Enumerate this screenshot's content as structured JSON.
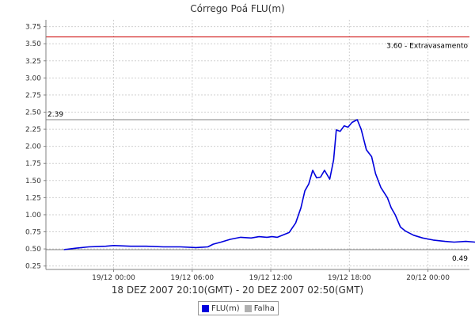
{
  "chart_data": {
    "type": "line",
    "title": "Córrego Poá FLU(m)",
    "xlabel": "18 DEZ 2007 20:10(GMT) - 20 DEZ 2007 02:50(GMT)",
    "ylabel": "",
    "x_unit": "hours since 19/12 00:00 (GMT)",
    "xlim": [
      -5.17,
      27.17
    ],
    "ylim": [
      0.2,
      3.85
    ],
    "grid": true,
    "x_ticks": [
      {
        "value": 0,
        "label": "19/12 00:00"
      },
      {
        "value": 6,
        "label": "19/12 06:00"
      },
      {
        "value": 12,
        "label": "19/12 12:00"
      },
      {
        "value": 18,
        "label": "19/12 18:00"
      },
      {
        "value": 24,
        "label": "20/12 00:00"
      }
    ],
    "y_ticks": [
      "0.25",
      "0.50",
      "0.75",
      "1.00",
      "1.25",
      "1.50",
      "1.75",
      "2.00",
      "2.25",
      "2.50",
      "2.75",
      "3.00",
      "3.25",
      "3.50",
      "3.75"
    ],
    "reference_lines": [
      {
        "value": 3.6,
        "label": "3.60 - Extravasamento",
        "color": "#cc0000"
      },
      {
        "value": 2.39,
        "label": "2.39",
        "color": "#808080"
      },
      {
        "value": 0.49,
        "label": "0.49",
        "color": "#808080"
      }
    ],
    "series": [
      {
        "name": "FLU(m)",
        "color": "#0000dd",
        "points": [
          [
            -3.8,
            0.49
          ],
          [
            -2.9,
            0.51
          ],
          [
            -1.9,
            0.53
          ],
          [
            -0.6,
            0.54
          ],
          [
            0.0,
            0.55
          ],
          [
            1.3,
            0.54
          ],
          [
            2.5,
            0.54
          ],
          [
            3.8,
            0.53
          ],
          [
            5.1,
            0.53
          ],
          [
            6.3,
            0.52
          ],
          [
            7.2,
            0.53
          ],
          [
            7.6,
            0.57
          ],
          [
            8.2,
            0.6
          ],
          [
            8.9,
            0.64
          ],
          [
            9.7,
            0.67
          ],
          [
            10.5,
            0.66
          ],
          [
            11.1,
            0.68
          ],
          [
            11.7,
            0.67
          ],
          [
            12.1,
            0.68
          ],
          [
            12.5,
            0.67
          ],
          [
            12.9,
            0.7
          ],
          [
            13.4,
            0.74
          ],
          [
            13.9,
            0.88
          ],
          [
            14.3,
            1.1
          ],
          [
            14.6,
            1.35
          ],
          [
            14.9,
            1.45
          ],
          [
            15.2,
            1.65
          ],
          [
            15.5,
            1.54
          ],
          [
            15.8,
            1.55
          ],
          [
            16.1,
            1.65
          ],
          [
            16.5,
            1.52
          ],
          [
            16.8,
            1.8
          ],
          [
            17.0,
            2.24
          ],
          [
            17.3,
            2.22
          ],
          [
            17.6,
            2.3
          ],
          [
            17.9,
            2.28
          ],
          [
            18.2,
            2.35
          ],
          [
            18.6,
            2.39
          ],
          [
            18.9,
            2.25
          ],
          [
            19.3,
            1.95
          ],
          [
            19.7,
            1.85
          ],
          [
            20.0,
            1.6
          ],
          [
            20.4,
            1.4
          ],
          [
            20.9,
            1.25
          ],
          [
            21.2,
            1.1
          ],
          [
            21.5,
            1.0
          ],
          [
            21.9,
            0.82
          ],
          [
            22.3,
            0.76
          ],
          [
            22.9,
            0.7
          ],
          [
            23.6,
            0.66
          ],
          [
            24.4,
            0.63
          ],
          [
            25.3,
            0.61
          ],
          [
            26.0,
            0.6
          ],
          [
            26.9,
            0.61
          ],
          [
            27.6,
            0.6
          ],
          [
            28.4,
            0.62
          ],
          [
            29.1,
            0.61
          ],
          [
            29.9,
            0.6
          ]
        ]
      }
    ],
    "legend": {
      "position": "bottom",
      "entries": [
        {
          "label": "FLU(m)",
          "color": "#0000dd"
        },
        {
          "label": "Falha",
          "color": "#b0b0b0"
        }
      ]
    }
  }
}
